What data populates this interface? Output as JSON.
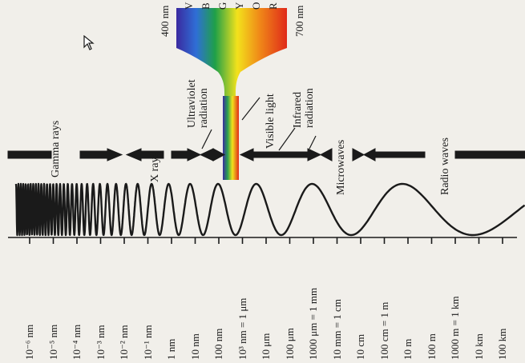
{
  "regions": {
    "gamma": "Gamma rays",
    "xray": "X rays",
    "uv": [
      "Ultraviolet",
      "radiation"
    ],
    "visible": "Visible light",
    "ir": [
      "Infrared",
      "radiation"
    ],
    "micro": "Microwaves",
    "radio": "Radio waves"
  },
  "spectrum": {
    "start": "400 nm",
    "end": "700 nm",
    "bands_partial": [
      "V",
      "B",
      "G",
      "Y",
      "O",
      "R"
    ]
  },
  "ticks": [
    {
      "label": "10⁻⁶ nm"
    },
    {
      "label": "10⁻⁵ nm"
    },
    {
      "label": "10⁻⁴ nm"
    },
    {
      "label": "10⁻³ nm"
    },
    {
      "label": "10⁻² nm"
    },
    {
      "label": "10⁻¹ nm"
    },
    {
      "label": "1 nm"
    },
    {
      "label": "10 nm"
    },
    {
      "label": "100 nm"
    },
    {
      "label": "10³ nm = 1 μm"
    },
    {
      "label": "10 μm"
    },
    {
      "label": "100 μm"
    },
    {
      "label": "1000 μm = 1 mm"
    },
    {
      "label": "10 mm = 1 cm"
    },
    {
      "label": "10 cm"
    },
    {
      "label": "100 cm = 1 m"
    },
    {
      "label": "10 m"
    },
    {
      "label": "100 m"
    },
    {
      "label": "1000 m = 1 km"
    },
    {
      "label": "10 km"
    },
    {
      "label": "100 km"
    }
  ],
  "colors": {
    "ink": "#1a1a1a",
    "paper": "#f1efea"
  }
}
